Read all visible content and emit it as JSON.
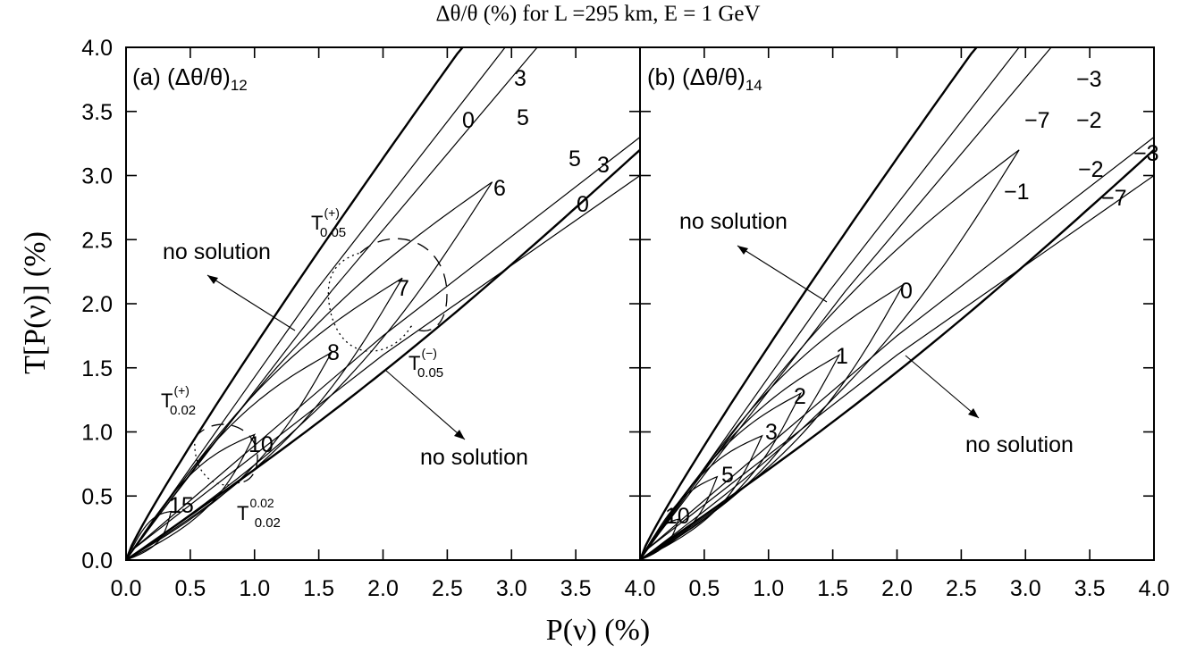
{
  "chart_data": {
    "type": "line",
    "title": "Δθ/θ (%) for L =295 km, E = 1 GeV",
    "xlabel": "P(ν) (%)",
    "ylabel": "T[P(ν)] (%)",
    "xlim": [
      0,
      4
    ],
    "ylim": [
      0,
      4
    ],
    "xticks": [
      "0.0",
      "0.5",
      "1.0",
      "1.5",
      "2.0",
      "2.5",
      "3.0",
      "3.5",
      "4.0"
    ],
    "yticks": [
      "0.0",
      "0.5",
      "1.0",
      "1.5",
      "2.0",
      "2.5",
      "3.0",
      "3.5",
      "4.0"
    ],
    "grid": false,
    "panels": [
      {
        "label": "(a) (Δθ/θ)",
        "label_sub": "12",
        "contour_labels": [
          "0",
          "3",
          "5",
          "6",
          "7",
          "8",
          "10",
          "15",
          "5",
          "3",
          "0"
        ],
        "annotations": [
          "no solution",
          "no solution"
        ],
        "circles": [
          {
            "name": "T",
            "sup": "(+)",
            "sub": "0.05"
          },
          {
            "name": "T",
            "sup": "(−)",
            "sub": "0.05"
          },
          {
            "name": "T",
            "sup": "(+)",
            "sub": "0.02"
          },
          {
            "name": "T",
            "sup": "(−)",
            "sub": "0.02"
          }
        ]
      },
      {
        "label": "(b) (Δθ/θ)",
        "label_sub": "14",
        "contour_labels": [
          "−3",
          "−7",
          "−2",
          "−1",
          "0",
          "1",
          "2",
          "3",
          "5",
          "10",
          "−3",
          "−2",
          "−7"
        ],
        "annotations": [
          "no solution",
          "no solution"
        ]
      }
    ]
  }
}
